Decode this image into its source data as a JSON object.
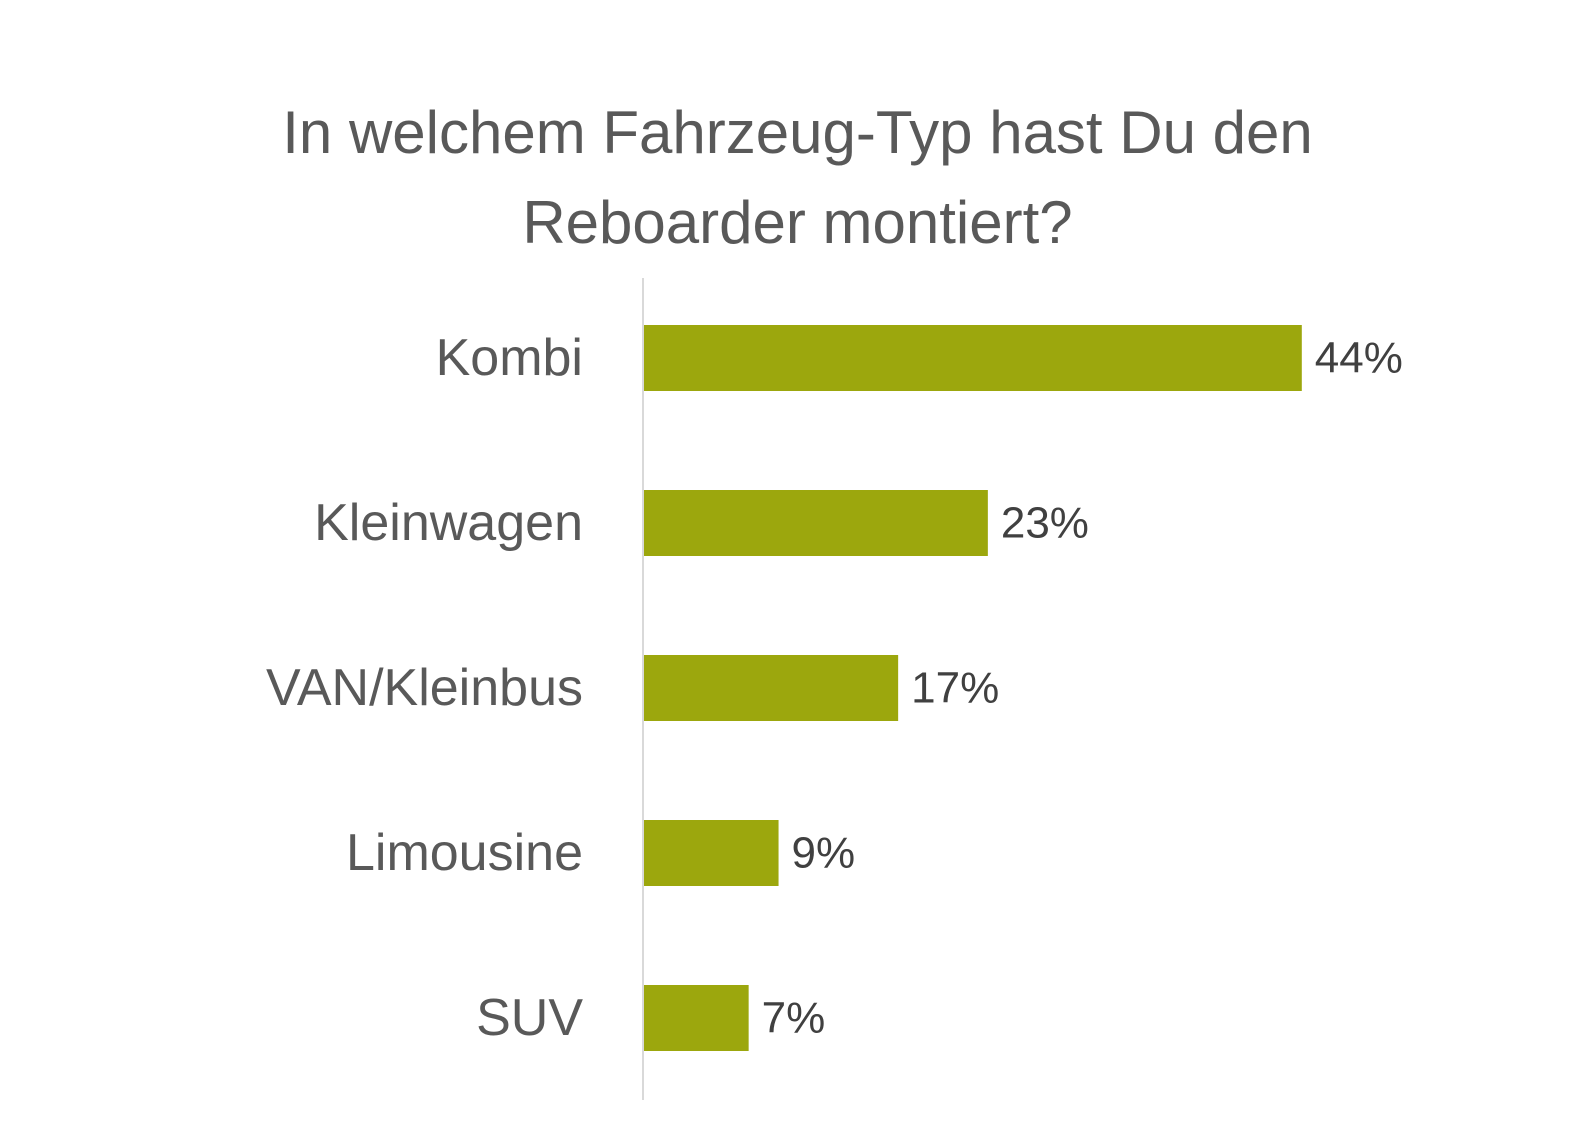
{
  "chart_data": {
    "type": "bar",
    "orientation": "horizontal",
    "title": "In welchem Fahrzeug-Typ hast Du den Reboarder montiert?",
    "categories": [
      "Kombi",
      "Kleinwagen",
      "VAN/Kleinbus",
      "Limousine",
      "SUV"
    ],
    "values": [
      44,
      23,
      17,
      9,
      7
    ],
    "data_labels": [
      "44%",
      "23%",
      "17%",
      "9%",
      "7%"
    ],
    "unit": "%",
    "xlim": [
      0,
      60
    ],
    "xlabel": "",
    "ylabel": "",
    "grid": false,
    "legend": "none",
    "bar_color": "#9ca70d",
    "axis_color": "#d9d9d9"
  }
}
